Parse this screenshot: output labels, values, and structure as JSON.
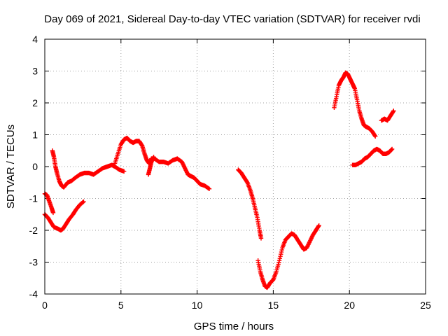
{
  "chart_data": {
    "type": "scatter",
    "title": "Day 069 of 2021, Sidereal Day-to-day VTEC variation (SDTVAR) for receiver rvdi",
    "xlabel": "GPS time / hours",
    "ylabel": "SDTVAR / TECUs",
    "xlim": [
      0,
      25
    ],
    "ylim": [
      -4,
      4
    ],
    "xticks": [
      "0",
      "5",
      "10",
      "15",
      "20",
      "25"
    ],
    "yticks": [
      "-4",
      "-3",
      "-2",
      "-1",
      "0",
      "1",
      "2",
      "3",
      "4"
    ],
    "grid": true,
    "marker": "plus",
    "color": "#ff0000",
    "series": [
      {
        "segments": [
          [
            [
              0.0,
              -0.85
            ],
            [
              0.15,
              -0.9
            ],
            [
              0.3,
              -1.1
            ],
            [
              0.45,
              -1.3
            ],
            [
              0.55,
              -1.45
            ]
          ],
          [
            [
              0.0,
              -1.5
            ],
            [
              0.2,
              -1.6
            ],
            [
              0.4,
              -1.75
            ],
            [
              0.6,
              -1.9
            ],
            [
              0.85,
              -1.95
            ],
            [
              1.05,
              -2.0
            ],
            [
              1.2,
              -1.95
            ],
            [
              1.4,
              -1.8
            ],
            [
              1.6,
              -1.65
            ],
            [
              1.85,
              -1.5
            ],
            [
              2.05,
              -1.35
            ],
            [
              2.3,
              -1.2
            ],
            [
              2.55,
              -1.1
            ]
          ],
          [
            [
              0.5,
              0.5
            ],
            [
              0.6,
              0.3
            ],
            [
              0.7,
              0.0
            ],
            [
              0.8,
              -0.2
            ],
            [
              0.95,
              -0.45
            ],
            [
              1.1,
              -0.6
            ],
            [
              1.25,
              -0.65
            ],
            [
              1.5,
              -0.5
            ],
            [
              1.75,
              -0.45
            ],
            [
              2.0,
              -0.35
            ],
            [
              2.3,
              -0.25
            ],
            [
              2.6,
              -0.2
            ],
            [
              2.9,
              -0.2
            ],
            [
              3.2,
              -0.25
            ],
            [
              3.5,
              -0.15
            ],
            [
              3.8,
              -0.05
            ],
            [
              4.1,
              0.0
            ],
            [
              4.4,
              0.05
            ],
            [
              4.6,
              0.0
            ],
            [
              4.9,
              -0.1
            ],
            [
              5.2,
              -0.15
            ]
          ],
          [
            [
              4.6,
              0.1
            ],
            [
              4.8,
              0.4
            ],
            [
              5.0,
              0.7
            ],
            [
              5.2,
              0.85
            ],
            [
              5.4,
              0.9
            ],
            [
              5.6,
              0.8
            ],
            [
              5.8,
              0.75
            ],
            [
              6.0,
              0.8
            ],
            [
              6.2,
              0.8
            ],
            [
              6.4,
              0.65
            ],
            [
              6.55,
              0.4
            ],
            [
              6.7,
              0.2
            ],
            [
              6.85,
              0.1
            ],
            [
              7.0,
              0.25
            ],
            [
              7.2,
              0.25
            ],
            [
              7.5,
              0.15
            ],
            [
              7.8,
              0.15
            ],
            [
              8.1,
              0.1
            ],
            [
              8.4,
              0.2
            ],
            [
              8.7,
              0.25
            ],
            [
              9.0,
              0.15
            ],
            [
              9.2,
              -0.05
            ],
            [
              9.4,
              -0.25
            ],
            [
              9.6,
              -0.3
            ],
            [
              9.8,
              -0.35
            ],
            [
              10.0,
              -0.45
            ],
            [
              10.2,
              -0.55
            ],
            [
              10.5,
              -0.6
            ],
            [
              10.8,
              -0.7
            ]
          ],
          [
            [
              6.8,
              -0.25
            ],
            [
              6.9,
              -0.05
            ],
            [
              7.0,
              0.15
            ],
            [
              7.15,
              0.3
            ]
          ],
          [
            [
              12.7,
              -0.1
            ],
            [
              12.9,
              -0.2
            ],
            [
              13.1,
              -0.35
            ],
            [
              13.3,
              -0.5
            ],
            [
              13.5,
              -0.75
            ],
            [
              13.65,
              -1.0
            ],
            [
              13.8,
              -1.3
            ],
            [
              13.95,
              -1.6
            ],
            [
              14.1,
              -2.0
            ],
            [
              14.2,
              -2.25
            ]
          ],
          [
            [
              14.0,
              -2.95
            ],
            [
              14.15,
              -3.3
            ],
            [
              14.3,
              -3.55
            ],
            [
              14.45,
              -3.75
            ],
            [
              14.6,
              -3.8
            ],
            [
              14.8,
              -3.65
            ],
            [
              15.0,
              -3.55
            ],
            [
              15.2,
              -3.3
            ],
            [
              15.4,
              -2.95
            ],
            [
              15.6,
              -2.55
            ],
            [
              15.8,
              -2.3
            ],
            [
              16.0,
              -2.2
            ],
            [
              16.2,
              -2.1
            ],
            [
              16.4,
              -2.15
            ],
            [
              16.6,
              -2.3
            ],
            [
              16.8,
              -2.45
            ],
            [
              17.0,
              -2.6
            ],
            [
              17.2,
              -2.55
            ],
            [
              17.4,
              -2.35
            ],
            [
              17.6,
              -2.15
            ],
            [
              17.8,
              -2.0
            ],
            [
              18.0,
              -1.85
            ]
          ],
          [
            [
              19.0,
              1.85
            ],
            [
              19.15,
              2.2
            ],
            [
              19.3,
              2.55
            ],
            [
              19.45,
              2.7
            ],
            [
              19.6,
              2.8
            ],
            [
              19.75,
              2.95
            ],
            [
              19.9,
              2.9
            ],
            [
              20.05,
              2.75
            ],
            [
              20.2,
              2.6
            ],
            [
              20.35,
              2.45
            ],
            [
              20.5,
              2.1
            ],
            [
              20.65,
              1.75
            ],
            [
              20.8,
              1.5
            ],
            [
              20.95,
              1.3
            ],
            [
              21.1,
              1.25
            ],
            [
              21.3,
              1.2
            ],
            [
              21.5,
              1.1
            ],
            [
              21.7,
              0.95
            ]
          ],
          [
            [
              20.2,
              0.05
            ],
            [
              20.4,
              0.05
            ],
            [
              20.6,
              0.1
            ],
            [
              20.8,
              0.15
            ],
            [
              21.0,
              0.25
            ],
            [
              21.2,
              0.3
            ],
            [
              21.4,
              0.4
            ],
            [
              21.6,
              0.5
            ],
            [
              21.8,
              0.55
            ],
            [
              22.0,
              0.5
            ],
            [
              22.2,
              0.4
            ],
            [
              22.4,
              0.4
            ],
            [
              22.6,
              0.45
            ],
            [
              22.8,
              0.55
            ]
          ],
          [
            [
              22.1,
              1.45
            ],
            [
              22.3,
              1.5
            ],
            [
              22.5,
              1.45
            ],
            [
              22.7,
              1.6
            ],
            [
              22.9,
              1.75
            ]
          ]
        ]
      }
    ]
  }
}
